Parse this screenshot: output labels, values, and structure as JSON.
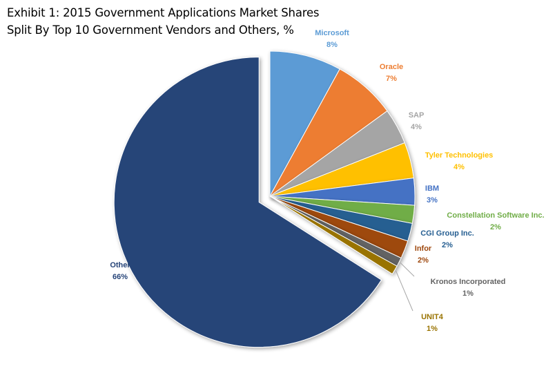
{
  "chart_data": {
    "type": "pie",
    "title_line1": "Exhibit 1: 2015 Government Applications Market Shares",
    "title_line2": "Split By Top 10 Government Vendors and Others, %",
    "slices": [
      {
        "name": "Microsoft",
        "value": 8,
        "label": "8%",
        "color": "#5B9BD5"
      },
      {
        "name": "Oracle",
        "value": 7,
        "label": "7%",
        "color": "#ED7D31"
      },
      {
        "name": "SAP",
        "value": 4,
        "label": "4%",
        "color": "#A5A5A5"
      },
      {
        "name": "Tyler Technologies",
        "value": 4,
        "label": "4%",
        "color": "#FFC000"
      },
      {
        "name": "IBM",
        "value": 3,
        "label": "3%",
        "color": "#4472C4"
      },
      {
        "name": "Constellation Software Inc.",
        "value": 2,
        "label": "2%",
        "color": "#70AD47"
      },
      {
        "name": "CGI Group Inc.",
        "value": 2,
        "label": "2%",
        "color": "#255E91"
      },
      {
        "name": "Infor",
        "value": 2,
        "label": "2%",
        "color": "#9E480E"
      },
      {
        "name": "Kronos Incorporated",
        "value": 1,
        "label": "1%",
        "color": "#636363"
      },
      {
        "name": "UNIT4",
        "value": 1,
        "label": "1%",
        "color": "#997300"
      },
      {
        "name": "Other",
        "value": 66,
        "label": "66%",
        "color": "#264478",
        "exploded": true
      }
    ]
  }
}
